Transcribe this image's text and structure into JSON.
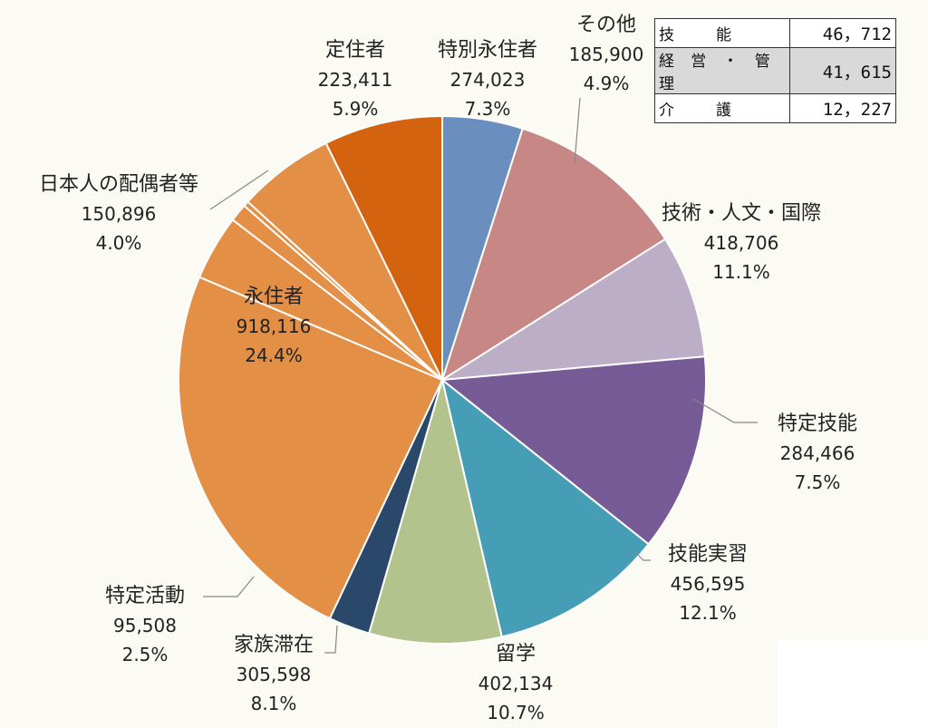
{
  "chart_data": {
    "type": "pie",
    "start_angle_deg": 0,
    "direction": "clockwise",
    "slices": [
      {
        "label": "その他",
        "value": "185,900",
        "pct": "4.9%",
        "num": 185900,
        "color": "#6a8fbf"
      },
      {
        "label": "技術・人文・国際",
        "value": "418,706",
        "pct": "11.1%",
        "num": 418706,
        "color": "#c78785"
      },
      {
        "label": "特定技能",
        "value": "284,466",
        "pct": "7.5%",
        "num": 284466,
        "color": "#bcaec6"
      },
      {
        "label": "技能実習",
        "value": "456,595",
        "pct": "12.1%",
        "num": 456595,
        "color": "#765b97"
      },
      {
        "label": "留学",
        "value": "402,134",
        "pct": "10.7%",
        "num": 402134,
        "color": "#469eb6"
      },
      {
        "label": "家族滞在",
        "value": "305,598",
        "pct": "8.1%",
        "num": 305598,
        "color": "#b3c38d"
      },
      {
        "label": "特定活動",
        "value": "95,508",
        "pct": "2.5%",
        "num": 95508,
        "color": "#2a4869"
      },
      {
        "label": "永住者",
        "value": "918,116",
        "pct": "24.4%",
        "num": 918116,
        "color": "#e38f45"
      },
      {
        "label": "日本人の配偶者等",
        "value": "150,896",
        "pct": "4.0%",
        "num": 150896,
        "color": "#e38f45"
      },
      {
        "label": "",
        "value": "",
        "pct": "",
        "num": 41615,
        "color": "#e38f45"
      },
      {
        "label": "",
        "value": "",
        "pct": "",
        "num": 12227,
        "color": "#e38f45"
      },
      {
        "label": "定住者",
        "value": "223,411",
        "pct": "5.9%",
        "num": 223411,
        "color": "#e38f45"
      },
      {
        "label": "特別永住者",
        "value": "274,023",
        "pct": "7.3%",
        "num": 274023,
        "color": "#d3630e"
      }
    ]
  },
  "inset_table": [
    {
      "label": "技　　能",
      "value": "46，712",
      "shaded": false
    },
    {
      "label": "経 営 ・ 管 理",
      "value": "41，615",
      "shaded": true
    },
    {
      "label": "介　　護",
      "value": "12，227",
      "shaded": false
    }
  ]
}
